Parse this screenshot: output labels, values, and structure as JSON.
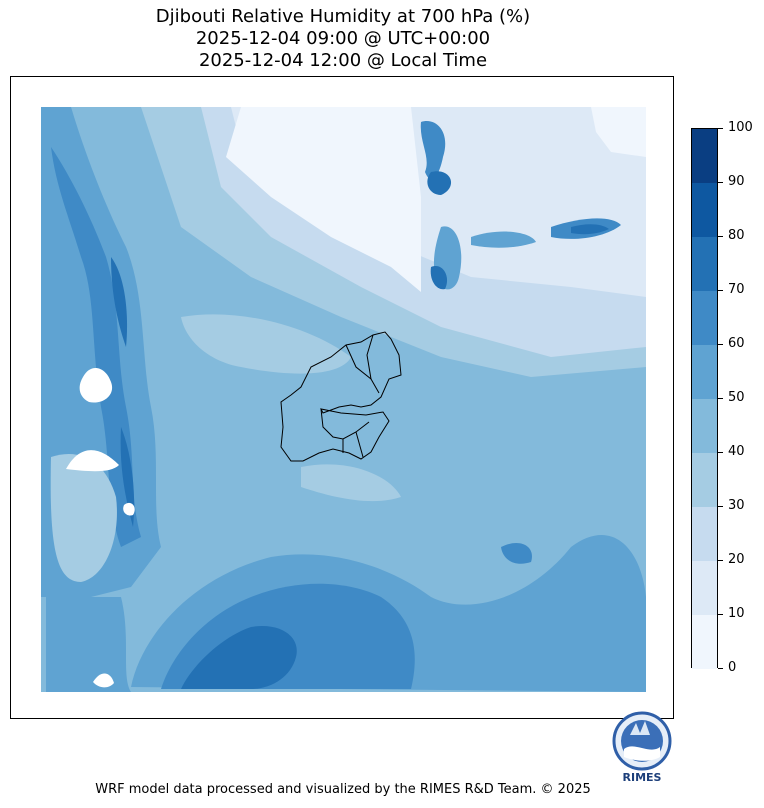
{
  "title": {
    "line1": "Djibouti Relative Humidity at 700 hPa (%)",
    "line2": "2025-12-04 09:00 @ UTC+00:00",
    "line3": "2025-12-04 12:00 @ Local Time"
  },
  "colorbar": {
    "ticks": [
      "0",
      "10",
      "20",
      "30",
      "40",
      "50",
      "60",
      "70",
      "80",
      "90",
      "100"
    ],
    "colors": [
      "#f0f6fd",
      "#dde9f6",
      "#c6dbef",
      "#a5cce3",
      "#83badb",
      "#5fa3d2",
      "#3f8ac6",
      "#2371b4",
      "#0e58a1",
      "#0a3e82"
    ]
  },
  "logo": {
    "text": "RIMES"
  },
  "footer": "WRF model data processed and visualized by the RIMES R&D Team. © 2025"
}
